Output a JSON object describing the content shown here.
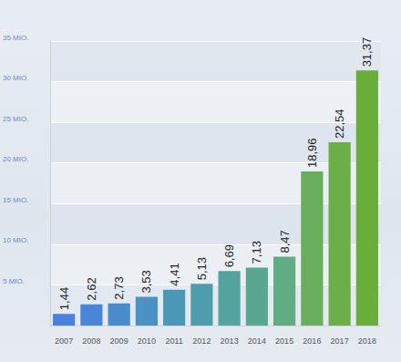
{
  "chart_data": {
    "type": "bar",
    "categories": [
      "2007",
      "2008",
      "2009",
      "2010",
      "2011",
      "2012",
      "2013",
      "2014",
      "2015",
      "2016",
      "2017",
      "2018"
    ],
    "values": [
      1.44,
      2.62,
      2.73,
      3.53,
      4.41,
      5.13,
      6.69,
      7.13,
      8.47,
      18.96,
      22.54,
      31.37
    ],
    "value_labels": [
      "1,44",
      "2,62",
      "2,73",
      "3,53",
      "4,41",
      "5,13",
      "6,69",
      "7,13",
      "8,47",
      "18,96",
      "22,54",
      "31,37"
    ],
    "colors": [
      "#4a7fe0",
      "#4a85d8",
      "#4a8bce",
      "#4a91c4",
      "#4b97b8",
      "#4f9dac",
      "#55a39e",
      "#5aa791",
      "#62ac83",
      "#68ae5c",
      "#6bae4a",
      "#6aae3a"
    ],
    "ylim": [
      0,
      35
    ],
    "yticks": [
      {
        "value": 5,
        "label": "5 MIO."
      },
      {
        "value": 10,
        "label": "10 MIO."
      },
      {
        "value": 15,
        "label": "15 MIO."
      },
      {
        "value": 20,
        "label": "20 MIO."
      },
      {
        "value": 25,
        "label": "25 MIO."
      },
      {
        "value": 30,
        "label": "30 MIO."
      },
      {
        "value": 35,
        "label": "35 MIO."
      }
    ],
    "grid": true,
    "data_labels": true
  }
}
